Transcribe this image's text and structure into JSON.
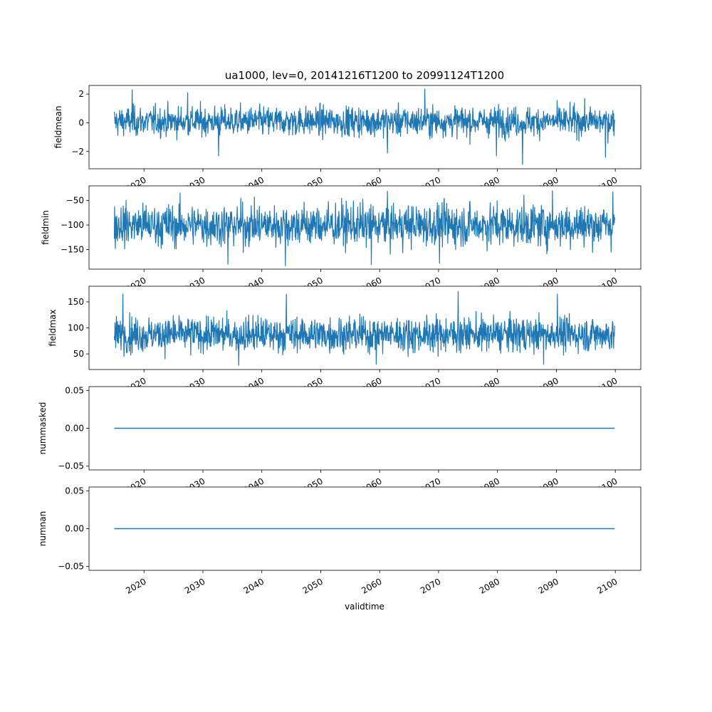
{
  "chart_data": {
    "type": "line",
    "title": "ua1000, lev=0, 20141216T1200 to 20991124T1200",
    "xlabel": "validtime",
    "x_start": "2014-12-16T12:00",
    "x_end": "2099-11-24T12:00",
    "x_ticks": [
      "2020",
      "2030",
      "2040",
      "2050",
      "2060",
      "2070",
      "2080",
      "2090",
      "2100"
    ],
    "x_lim": [
      "2010-09-01",
      "2104-05-01"
    ],
    "series_color": "#1f77b4",
    "panels": [
      {
        "ylabel": "fieldmean",
        "ylim": [
          -3.2,
          2.6
        ],
        "y_ticks": [
          -2,
          0,
          2
        ],
        "y_tick_labels": [
          "−2",
          "0",
          "2"
        ],
        "band": {
          "center": 0.2,
          "lower": -1.2,
          "upper": 1.4,
          "min": -2.9,
          "max": 2.3
        },
        "extremes": [
          [
            "2018-01-01",
            2.3
          ],
          [
            "2027-06-01",
            2.1
          ],
          [
            "2032-09-01",
            -2.3
          ],
          [
            "2061-05-01",
            -2.1
          ],
          [
            "2067-09-01",
            2.35
          ],
          [
            "2079-11-01",
            -2.3
          ],
          [
            "2084-04-01",
            -2.9
          ],
          [
            "2098-05-01",
            -2.4
          ]
        ]
      },
      {
        "ylabel": "fieldmin",
        "ylim": [
          -190,
          -20
        ],
        "y_ticks": [
          -50,
          -100,
          -150
        ],
        "y_tick_labels": [
          "−50",
          "−100",
          "−150"
        ],
        "band": {
          "center": -100,
          "lower": -155,
          "upper": -45,
          "min": -183,
          "max": -30
        },
        "extremes": [
          [
            "2044-01-01",
            -183
          ],
          [
            "2058-08-01",
            -181
          ],
          [
            "2034-04-01",
            -180
          ],
          [
            "2089-05-01",
            -30
          ],
          [
            "2099-08-01",
            -32
          ],
          [
            "2070-03-01",
            -178
          ]
        ]
      },
      {
        "ylabel": "fieldmax",
        "ylim": [
          20,
          180
        ],
        "y_ticks": [
          150,
          100,
          50
        ],
        "y_tick_labels": [
          "150",
          "100",
          "50"
        ],
        "band": {
          "center": 88,
          "lower": 45,
          "upper": 130,
          "min": 28,
          "max": 170
        },
        "extremes": [
          [
            "2073-05-01",
            170
          ],
          [
            "2016-06-01",
            165
          ],
          [
            "2044-03-01",
            165
          ],
          [
            "2090-03-01",
            165
          ],
          [
            "2036-02-01",
            28
          ],
          [
            "2059-06-01",
            30
          ],
          [
            "2087-11-01",
            30
          ]
        ]
      },
      {
        "ylabel": "nummasked",
        "ylim": [
          -0.055,
          0.055
        ],
        "y_ticks": [
          0.05,
          0.0,
          -0.05
        ],
        "y_tick_labels": [
          "0.05",
          "0.00",
          "−0.05"
        ],
        "constant": 0.0
      },
      {
        "ylabel": "numnan",
        "ylim": [
          -0.055,
          0.055
        ],
        "y_ticks": [
          0.05,
          0.0,
          -0.05
        ],
        "y_tick_labels": [
          "0.05",
          "0.00",
          "−0.05"
        ],
        "constant": 0.0
      }
    ]
  }
}
